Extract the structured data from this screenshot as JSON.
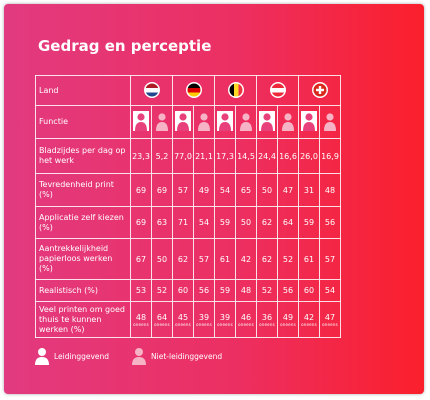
{
  "title": "Gedrag en perceptie",
  "table": {
    "header": "Land",
    "function_label": "Functie",
    "rows": [
      {
        "label": "Bladzijdes per dag op het werk",
        "values": [
          "23,3",
          "5,2",
          "77,0",
          "21,1",
          "17,3",
          "14,5",
          "24,4",
          "16,6",
          "26,0",
          "16,9"
        ]
      },
      {
        "label": "Tevredenheid print (%)",
        "values": [
          "69",
          "69",
          "57",
          "49",
          "54",
          "65",
          "50",
          "47",
          "31",
          "48"
        ]
      },
      {
        "label": "Applicatie zelf kiezen (%)",
        "values": [
          "69",
          "63",
          "71",
          "54",
          "59",
          "50",
          "62",
          "64",
          "59",
          "56"
        ]
      },
      {
        "label": "Aantrekkelijkheid papierloos werken (%)",
        "values": [
          "67",
          "50",
          "62",
          "57",
          "61",
          "42",
          "62",
          "52",
          "61",
          "57"
        ]
      },
      {
        "label": "Realistisch (%)",
        "values": [
          "53",
          "52",
          "60",
          "56",
          "59",
          "48",
          "52",
          "56",
          "60",
          "54"
        ]
      },
      {
        "label": "Veel printen om goed thuis te kunnen werken (%)",
        "values": [
          "48",
          "64",
          "45",
          "39",
          "39",
          "46",
          "36",
          "49",
          "42",
          "47"
        ],
        "sublabel": "oneens"
      }
    ]
  },
  "legend": [
    "Leidinggevend",
    "Niet-leidinggevend"
  ]
}
